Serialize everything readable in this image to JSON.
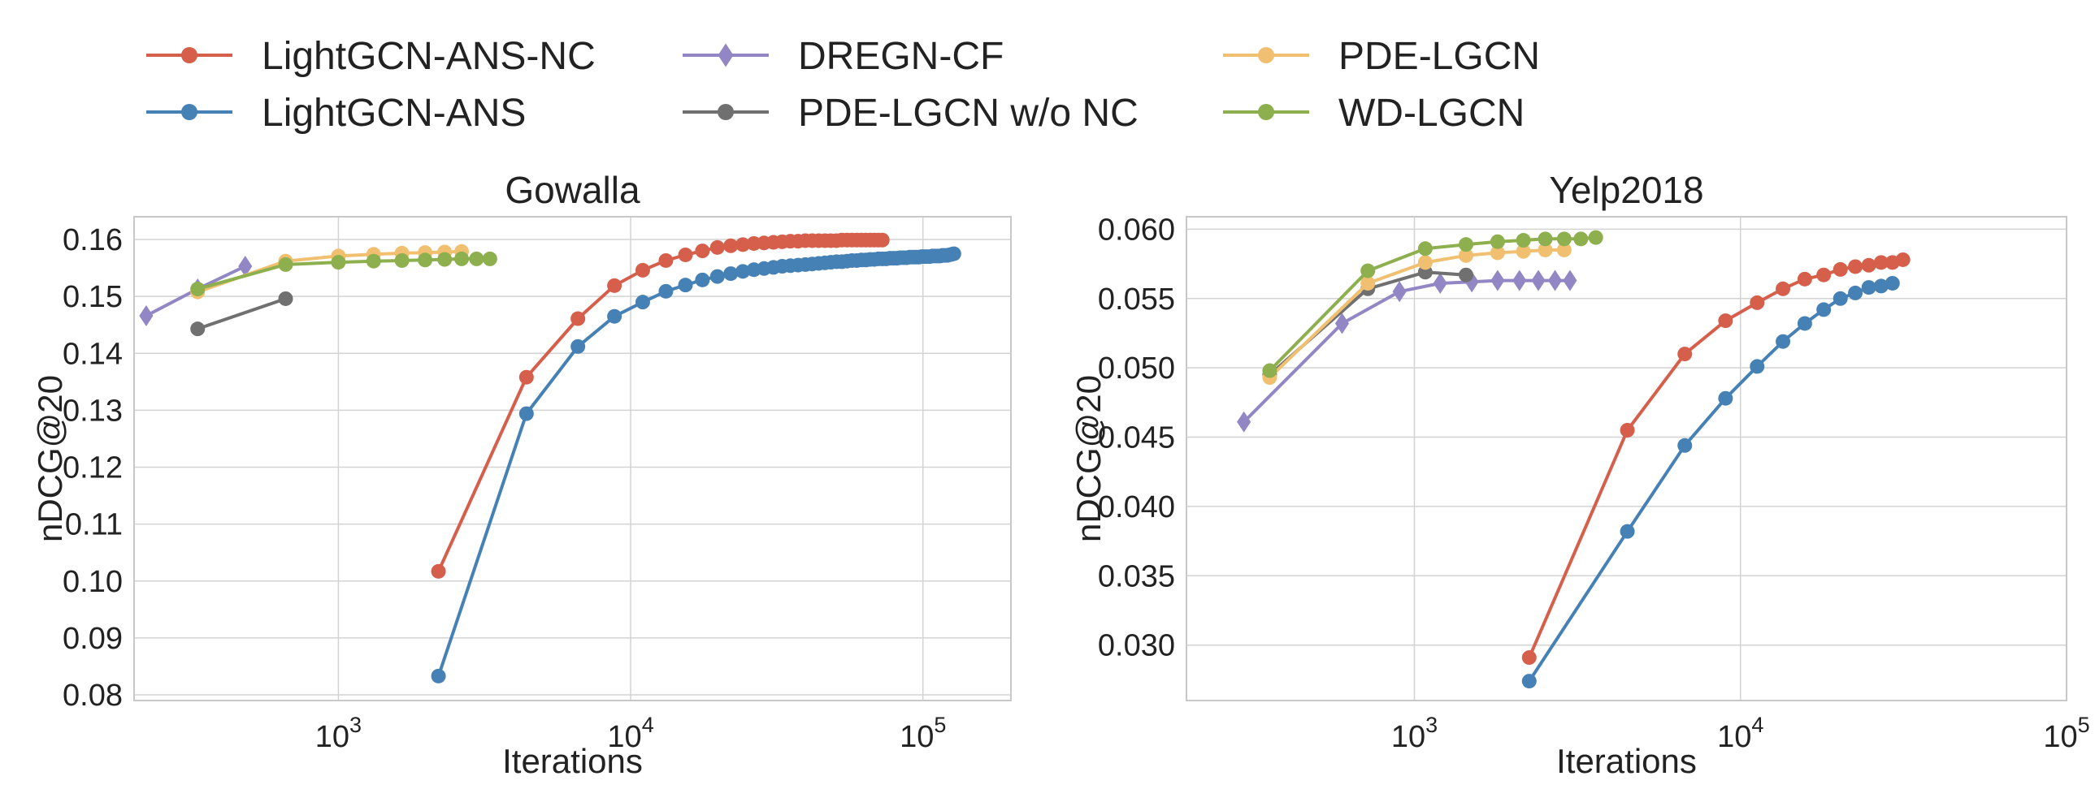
{
  "chart_data": [
    {
      "type": "line",
      "title": "Gowalla",
      "xlabel": "Iterations",
      "ylabel": "nDCG@20",
      "xscale": "log",
      "xlim": [
        200,
        200000
      ],
      "ylim": [
        0.079,
        0.164
      ],
      "xticks": [
        1000,
        10000,
        100000
      ],
      "xtick_labels": [
        {
          "base": "10",
          "exp": "3"
        },
        {
          "base": "10",
          "exp": "4"
        },
        {
          "base": "10",
          "exp": "5"
        }
      ],
      "yticks": [
        0.08,
        0.09,
        0.1,
        0.11,
        0.12,
        0.13,
        0.14,
        0.15,
        0.16
      ],
      "ytick_labels": [
        "0.08",
        "0.09",
        "0.10",
        "0.11",
        "0.12",
        "0.13",
        "0.14",
        "0.15",
        "0.16"
      ],
      "grid": true,
      "series": [
        {
          "name": "LightGCN-ANS-NC",
          "color": "#d65f4b",
          "marker": "circle",
          "x": [
            2200,
            4400,
            6600,
            8800,
            11000,
            13200,
            15400,
            17600,
            19800,
            22000,
            24200,
            26400,
            28600,
            30800,
            33000,
            35200,
            37400,
            39600,
            41800,
            44000,
            46200,
            48400,
            50600,
            52800,
            55000,
            57200,
            59400,
            61600,
            63800,
            66000,
            68200,
            70400,
            72600
          ],
          "y": [
            0.1017,
            0.1358,
            0.1461,
            0.1519,
            0.1546,
            0.1563,
            0.1573,
            0.158,
            0.1586,
            0.1589,
            0.1591,
            0.1593,
            0.1594,
            0.1595,
            0.1596,
            0.1597,
            0.1597,
            0.1598,
            0.1598,
            0.1598,
            0.1598,
            0.1598,
            0.1598,
            0.1599,
            0.1599,
            0.1599,
            0.1599,
            0.1599,
            0.1599,
            0.1599,
            0.1599,
            0.1599,
            0.1599
          ]
        },
        {
          "name": "LightGCN-ANS",
          "color": "#4681b5",
          "marker": "circle",
          "x": [
            2200,
            4400,
            6600,
            8800,
            11000,
            13200,
            15400,
            17600,
            19800,
            22000,
            24200,
            26400,
            28600,
            30800,
            33000,
            35200,
            37400,
            39600,
            41800,
            44000,
            46200,
            48400,
            50600,
            52800,
            55000,
            57200,
            59400,
            61600,
            63800,
            66000,
            68200,
            70400,
            72600,
            74800,
            77000,
            79200,
            81400,
            83600,
            85800,
            88000,
            90200,
            92400,
            94600,
            96800,
            99000,
            101200,
            103400,
            105600,
            107800,
            110000,
            112200,
            114400,
            116600,
            118800,
            121000,
            123200,
            125400,
            127600
          ],
          "y": [
            0.0833,
            0.1294,
            0.1412,
            0.1465,
            0.149,
            0.1509,
            0.152,
            0.1529,
            0.1535,
            0.154,
            0.1544,
            0.1547,
            0.1549,
            0.1551,
            0.1553,
            0.1554,
            0.1555,
            0.1556,
            0.1557,
            0.1558,
            0.1559,
            0.156,
            0.1561,
            0.1561,
            0.1562,
            0.1563,
            0.1563,
            0.1564,
            0.1564,
            0.1565,
            0.1565,
            0.1566,
            0.1566,
            0.1566,
            0.1567,
            0.1567,
            0.1567,
            0.1568,
            0.1568,
            0.1568,
            0.1569,
            0.1569,
            0.1569,
            0.1569,
            0.157,
            0.157,
            0.157,
            0.157,
            0.1571,
            0.1571,
            0.1571,
            0.1571,
            0.1572,
            0.1572,
            0.1572,
            0.1573,
            0.1574,
            0.1575
          ]
        },
        {
          "name": "DREGN-CF",
          "color": "#9287c4",
          "marker": "diamond",
          "x": [
            220,
            330,
            480
          ],
          "y": [
            0.1466,
            0.1513,
            0.1553
          ]
        },
        {
          "name": "PDE-LGCN w/o NC",
          "color": "#707070",
          "marker": "circle",
          "x": [
            330,
            660
          ],
          "y": [
            0.1443,
            0.1496
          ]
        },
        {
          "name": "PDE-LGCN",
          "color": "#f0c070",
          "marker": "circle",
          "x": [
            330,
            660,
            1000,
            1320,
            1650,
            1980,
            2310,
            2640
          ],
          "y": [
            0.1508,
            0.1562,
            0.1571,
            0.1574,
            0.1576,
            0.1577,
            0.1578,
            0.1579
          ]
        },
        {
          "name": "WD-LGCN",
          "color": "#8daf4e",
          "marker": "circle",
          "x": [
            330,
            660,
            1000,
            1320,
            1650,
            1980,
            2310,
            2640,
            2970,
            3300
          ],
          "y": [
            0.1513,
            0.1556,
            0.156,
            0.1562,
            0.1563,
            0.1564,
            0.1565,
            0.1566,
            0.1566,
            0.1566
          ]
        }
      ]
    },
    {
      "type": "line",
      "title": "Yelp2018",
      "xlabel": "Iterations",
      "ylabel": "nDCG@20",
      "xscale": "log",
      "xlim": [
        200,
        100000
      ],
      "ylim": [
        0.026,
        0.0609
      ],
      "xticks": [
        1000,
        10000,
        100000
      ],
      "xtick_labels": [
        {
          "base": "10",
          "exp": "3"
        },
        {
          "base": "10",
          "exp": "4"
        },
        {
          "base": "10",
          "exp": "5"
        }
      ],
      "yticks": [
        0.03,
        0.035,
        0.04,
        0.045,
        0.05,
        0.055,
        0.06
      ],
      "ytick_labels": [
        "0.030",
        "0.035",
        "0.040",
        "0.045",
        "0.050",
        "0.055",
        "0.060"
      ],
      "grid": true,
      "series": [
        {
          "name": "LightGCN-ANS-NC",
          "color": "#d65f4b",
          "marker": "circle",
          "x": [
            2250,
            4500,
            6750,
            9000,
            11250,
            13500,
            15750,
            18000,
            20250,
            22500,
            24750,
            27000,
            29250,
            31500
          ],
          "y": [
            0.0291,
            0.0455,
            0.051,
            0.0534,
            0.0547,
            0.0557,
            0.0564,
            0.0567,
            0.0571,
            0.0573,
            0.0574,
            0.0576,
            0.0576,
            0.0578
          ]
        },
        {
          "name": "LightGCN-ANS",
          "color": "#4681b5",
          "marker": "circle",
          "x": [
            2250,
            4500,
            6750,
            9000,
            11250,
            13500,
            15750,
            18000,
            20250,
            22500,
            24750,
            27000,
            29250
          ],
          "y": [
            0.0274,
            0.0382,
            0.0444,
            0.0478,
            0.0501,
            0.0519,
            0.0532,
            0.0542,
            0.055,
            0.0554,
            0.0558,
            0.0559,
            0.0561
          ]
        },
        {
          "name": "DREGN-CF",
          "color": "#9287c4",
          "marker": "diamond",
          "x": [
            300,
            600,
            900,
            1200,
            1500,
            1800,
            2100,
            2400,
            2700,
            3000
          ],
          "y": [
            0.0461,
            0.0532,
            0.0555,
            0.0561,
            0.0562,
            0.0563,
            0.0563,
            0.0563,
            0.0563,
            0.0563
          ]
        },
        {
          "name": "PDE-LGCN w/o NC",
          "color": "#707070",
          "marker": "circle",
          "x": [
            360,
            720,
            1080,
            1440
          ],
          "y": [
            0.0495,
            0.0557,
            0.0569,
            0.0567
          ]
        },
        {
          "name": "PDE-LGCN",
          "color": "#f0c070",
          "marker": "circle",
          "x": [
            360,
            720,
            1080,
            1440,
            1800,
            2160,
            2520,
            2880
          ],
          "y": [
            0.0493,
            0.0561,
            0.0576,
            0.0581,
            0.0583,
            0.0584,
            0.0585,
            0.0585
          ]
        },
        {
          "name": "WD-LGCN",
          "color": "#8daf4e",
          "marker": "circle",
          "x": [
            360,
            720,
            1080,
            1440,
            1800,
            2160,
            2520,
            2880,
            3240,
            3600
          ],
          "y": [
            0.0498,
            0.057,
            0.0586,
            0.0589,
            0.0591,
            0.0592,
            0.0593,
            0.0593,
            0.0593,
            0.0594
          ]
        }
      ]
    }
  ],
  "legend": {
    "placement": "top",
    "entries": [
      {
        "label": "LightGCN-ANS-NC",
        "color": "#d65f4b",
        "marker": "circle"
      },
      {
        "label": "LightGCN-ANS",
        "color": "#4681b5",
        "marker": "circle"
      },
      {
        "label": "DREGN-CF",
        "color": "#9287c4",
        "marker": "diamond"
      },
      {
        "label": "PDE-LGCN w/o NC",
        "color": "#707070",
        "marker": "circle"
      },
      {
        "label": "PDE-LGCN",
        "color": "#f0c070",
        "marker": "circle"
      },
      {
        "label": "WD-LGCN",
        "color": "#8daf4e",
        "marker": "circle"
      }
    ]
  }
}
